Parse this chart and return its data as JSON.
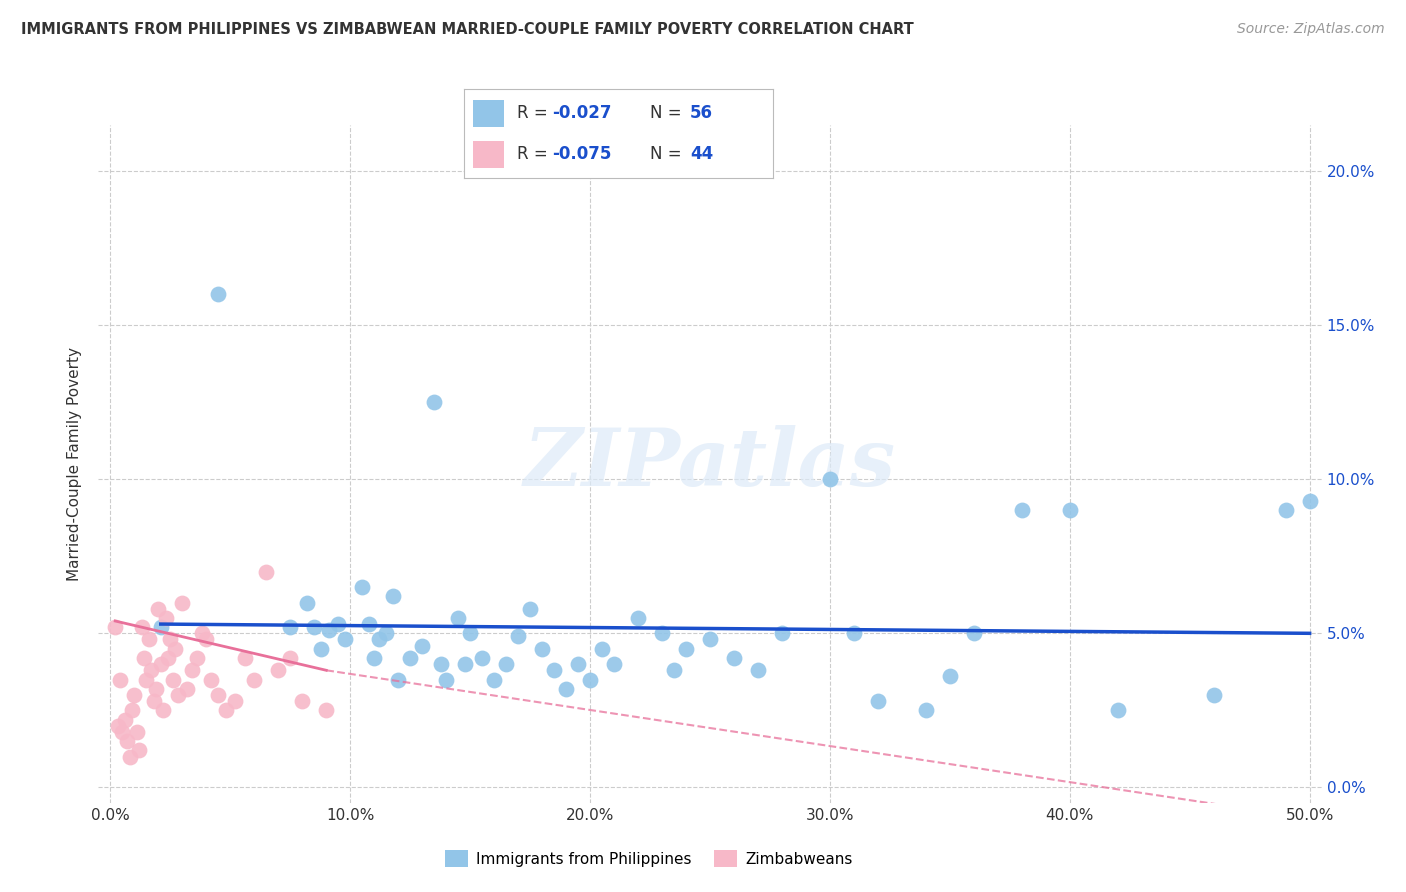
{
  "title": "IMMIGRANTS FROM PHILIPPINES VS ZIMBABWEAN MARRIED-COUPLE FAMILY POVERTY CORRELATION CHART",
  "source": "Source: ZipAtlas.com",
  "ylabel": "Married-Couple Family Poverty",
  "xlim": [
    -0.005,
    0.505
  ],
  "ylim": [
    -0.005,
    0.215
  ],
  "xticks": [
    0.0,
    0.1,
    0.2,
    0.3,
    0.4,
    0.5
  ],
  "xticklabels": [
    "0.0%",
    "10.0%",
    "20.0%",
    "30.0%",
    "40.0%",
    "50.0%"
  ],
  "yticks": [
    0.0,
    0.05,
    0.1,
    0.15,
    0.2
  ],
  "yticklabels": [
    "0.0%",
    "5.0%",
    "10.0%",
    "15.0%",
    "20.0%"
  ],
  "blue_color": "#92C5E8",
  "pink_color": "#F7B8C8",
  "blue_line_color": "#1A4FCC",
  "pink_line_color": "#E8709A",
  "grid_color": "#CCCCCC",
  "legend_label_blue": "Immigrants from Philippines",
  "legend_label_pink": "Zimbabweans",
  "watermark": "ZIPatlas",
  "blue_scatter_x": [
    0.021,
    0.045,
    0.075,
    0.082,
    0.085,
    0.088,
    0.091,
    0.095,
    0.098,
    0.105,
    0.108,
    0.11,
    0.112,
    0.115,
    0.118,
    0.12,
    0.125,
    0.13,
    0.135,
    0.138,
    0.14,
    0.145,
    0.148,
    0.15,
    0.155,
    0.16,
    0.165,
    0.17,
    0.175,
    0.18,
    0.185,
    0.19,
    0.195,
    0.2,
    0.205,
    0.21,
    0.22,
    0.23,
    0.235,
    0.24,
    0.25,
    0.26,
    0.27,
    0.28,
    0.3,
    0.31,
    0.32,
    0.34,
    0.35,
    0.36,
    0.38,
    0.4,
    0.42,
    0.46,
    0.49,
    0.5
  ],
  "blue_scatter_y": [
    0.052,
    0.16,
    0.052,
    0.06,
    0.052,
    0.045,
    0.051,
    0.053,
    0.048,
    0.065,
    0.053,
    0.042,
    0.048,
    0.05,
    0.062,
    0.035,
    0.042,
    0.046,
    0.125,
    0.04,
    0.035,
    0.055,
    0.04,
    0.05,
    0.042,
    0.035,
    0.04,
    0.049,
    0.058,
    0.045,
    0.038,
    0.032,
    0.04,
    0.035,
    0.045,
    0.04,
    0.055,
    0.05,
    0.038,
    0.045,
    0.048,
    0.042,
    0.038,
    0.05,
    0.1,
    0.05,
    0.028,
    0.025,
    0.036,
    0.05,
    0.09,
    0.09,
    0.025,
    0.03,
    0.09,
    0.093
  ],
  "pink_scatter_x": [
    0.002,
    0.003,
    0.004,
    0.005,
    0.006,
    0.007,
    0.008,
    0.009,
    0.01,
    0.011,
    0.012,
    0.013,
    0.014,
    0.015,
    0.016,
    0.017,
    0.018,
    0.019,
    0.02,
    0.021,
    0.022,
    0.023,
    0.024,
    0.025,
    0.026,
    0.027,
    0.028,
    0.03,
    0.032,
    0.034,
    0.036,
    0.038,
    0.04,
    0.042,
    0.045,
    0.048,
    0.052,
    0.056,
    0.06,
    0.065,
    0.07,
    0.075,
    0.08,
    0.09
  ],
  "pink_scatter_y": [
    0.052,
    0.02,
    0.035,
    0.018,
    0.022,
    0.015,
    0.01,
    0.025,
    0.03,
    0.018,
    0.012,
    0.052,
    0.042,
    0.035,
    0.048,
    0.038,
    0.028,
    0.032,
    0.058,
    0.04,
    0.025,
    0.055,
    0.042,
    0.048,
    0.035,
    0.045,
    0.03,
    0.06,
    0.032,
    0.038,
    0.042,
    0.05,
    0.048,
    0.035,
    0.03,
    0.025,
    0.028,
    0.042,
    0.035,
    0.07,
    0.038,
    0.042,
    0.028,
    0.025
  ],
  "blue_line_x_start": 0.021,
  "blue_line_x_end": 0.5,
  "blue_line_y_start": 0.053,
  "blue_line_y_end": 0.05,
  "pink_line_x_start": 0.002,
  "pink_line_x_solid_end": 0.09,
  "pink_line_x_dash_end": 0.5,
  "pink_line_y_start": 0.054,
  "pink_line_y_solid_end": 0.038,
  "pink_line_y_dash_end": -0.01
}
